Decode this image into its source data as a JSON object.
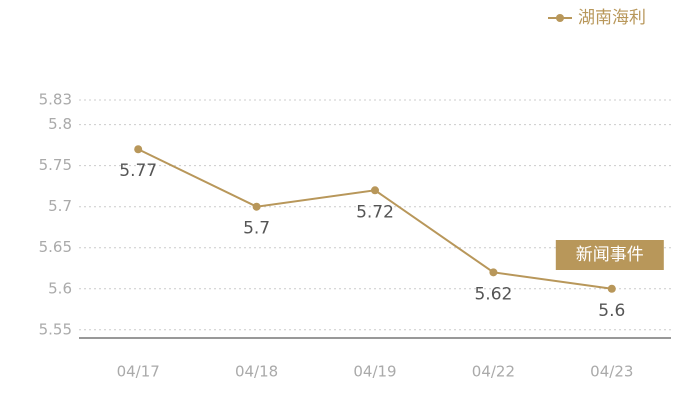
{
  "chart_data": {
    "type": "line",
    "categories": [
      "04/17",
      "04/18",
      "04/19",
      "04/22",
      "04/23"
    ],
    "series": [
      {
        "name": "湖南海利",
        "color": "#b8975a",
        "values": [
          5.77,
          5.7,
          5.72,
          5.62,
          5.6
        ]
      }
    ],
    "ylim": [
      5.54,
      5.83
    ],
    "yticks": [
      5.55,
      5.6,
      5.65,
      5.7,
      5.75,
      5.8,
      5.83
    ],
    "grid": true,
    "legend": "top-right",
    "annotation": "新闻事件"
  }
}
